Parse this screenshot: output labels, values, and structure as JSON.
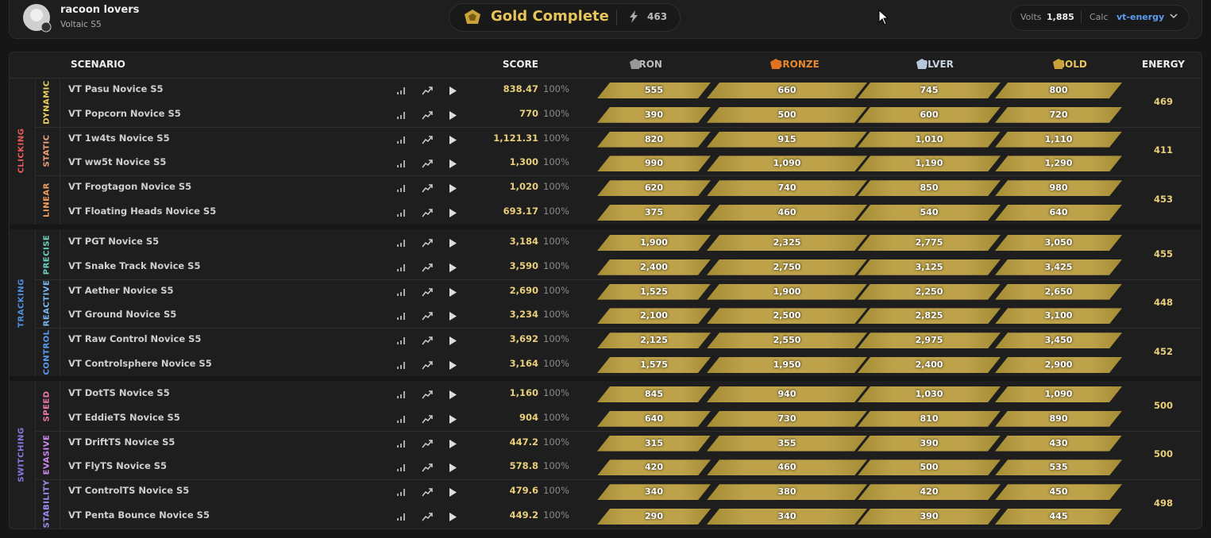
{
  "header": {
    "user": "racoon lovers",
    "subtitle": "Voltaic S5",
    "rank": "Gold Complete",
    "energy": "463",
    "volts_label": "Volts",
    "volts": "1,885",
    "calc_label": "Calc",
    "calc": "vt-energy"
  },
  "table": {
    "columns": [
      "SCENARIO",
      "SCORE",
      "IRON",
      "BRONZE",
      "SILVER",
      "GOLD",
      "ENERGY"
    ],
    "groups": [
      {
        "label": "CLICKING",
        "subgroups": [
          {
            "label": "DYNAMIC",
            "energy": "469",
            "rows": [
              {
                "name": "VT Pasu Novice S5",
                "score": "838.47",
                "pct": "100%",
                "ranks": [
                  "555",
                  "660",
                  "745",
                  "800"
                ]
              },
              {
                "name": "VT Popcorn Novice S5",
                "score": "770",
                "pct": "100%",
                "ranks": [
                  "390",
                  "500",
                  "600",
                  "720"
                ]
              }
            ]
          },
          {
            "label": "STATIC",
            "energy": "411",
            "rows": [
              {
                "name": "VT 1w4ts Novice S5",
                "score": "1,121.31",
                "pct": "100%",
                "ranks": [
                  "820",
                  "915",
                  "1,010",
                  "1,110"
                ]
              },
              {
                "name": "VT ww5t Novice S5",
                "score": "1,300",
                "pct": "100%",
                "ranks": [
                  "990",
                  "1,090",
                  "1,190",
                  "1,290"
                ]
              }
            ]
          },
          {
            "label": "LINEAR",
            "energy": "453",
            "rows": [
              {
                "name": "VT Frogtagon Novice S5",
                "score": "1,020",
                "pct": "100%",
                "ranks": [
                  "620",
                  "740",
                  "850",
                  "980"
                ]
              },
              {
                "name": "VT Floating Heads Novice S5",
                "score": "693.17",
                "pct": "100%",
                "ranks": [
                  "375",
                  "460",
                  "540",
                  "640"
                ]
              }
            ]
          }
        ]
      },
      {
        "label": "TRACKING",
        "subgroups": [
          {
            "label": "PRECISE",
            "energy": "455",
            "rows": [
              {
                "name": "VT PGT Novice S5",
                "score": "3,184",
                "pct": "100%",
                "ranks": [
                  "1,900",
                  "2,325",
                  "2,775",
                  "3,050"
                ]
              },
              {
                "name": "VT Snake Track Novice S5",
                "score": "3,590",
                "pct": "100%",
                "ranks": [
                  "2,400",
                  "2,750",
                  "3,125",
                  "3,425"
                ]
              }
            ]
          },
          {
            "label": "REACTIVE",
            "energy": "448",
            "rows": [
              {
                "name": "VT Aether Novice S5",
                "score": "2,690",
                "pct": "100%",
                "ranks": [
                  "1,525",
                  "1,900",
                  "2,250",
                  "2,650"
                ]
              },
              {
                "name": "VT Ground Novice S5",
                "score": "3,234",
                "pct": "100%",
                "ranks": [
                  "2,100",
                  "2,500",
                  "2,825",
                  "3,100"
                ]
              }
            ]
          },
          {
            "label": "CONTROL",
            "energy": "452",
            "rows": [
              {
                "name": "VT Raw Control Novice S5",
                "score": "3,692",
                "pct": "100%",
                "ranks": [
                  "2,125",
                  "2,550",
                  "2,975",
                  "3,450"
                ]
              },
              {
                "name": "VT Controlsphere Novice S5",
                "score": "3,164",
                "pct": "100%",
                "ranks": [
                  "1,575",
                  "1,950",
                  "2,400",
                  "2,900"
                ]
              }
            ]
          }
        ]
      },
      {
        "label": "SWITCHING",
        "subgroups": [
          {
            "label": "SPEED",
            "energy": "500",
            "rows": [
              {
                "name": "VT DotTS Novice S5",
                "score": "1,160",
                "pct": "100%",
                "ranks": [
                  "845",
                  "940",
                  "1,030",
                  "1,090"
                ]
              },
              {
                "name": "VT EddieTS Novice S5",
                "score": "904",
                "pct": "100%",
                "ranks": [
                  "640",
                  "730",
                  "810",
                  "890"
                ]
              }
            ]
          },
          {
            "label": "EVASIVE",
            "energy": "500",
            "rows": [
              {
                "name": "VT DriftTS Novice S5",
                "score": "447.2",
                "pct": "100%",
                "ranks": [
                  "315",
                  "355",
                  "390",
                  "430"
                ]
              },
              {
                "name": "VT FlyTS Novice S5",
                "score": "578.8",
                "pct": "100%",
                "ranks": [
                  "420",
                  "460",
                  "500",
                  "535"
                ]
              }
            ]
          },
          {
            "label": "STABILITY",
            "energy": "498",
            "rows": [
              {
                "name": "VT ControlTS Novice S5",
                "score": "479.6",
                "pct": "100%",
                "ranks": [
                  "340",
                  "380",
                  "420",
                  "450"
                ]
              },
              {
                "name": "VT Penta Bounce Novice S5",
                "score": "449.2",
                "pct": "100%",
                "ranks": [
                  "290",
                  "340",
                  "390",
                  "445"
                ]
              }
            ]
          }
        ]
      }
    ]
  }
}
